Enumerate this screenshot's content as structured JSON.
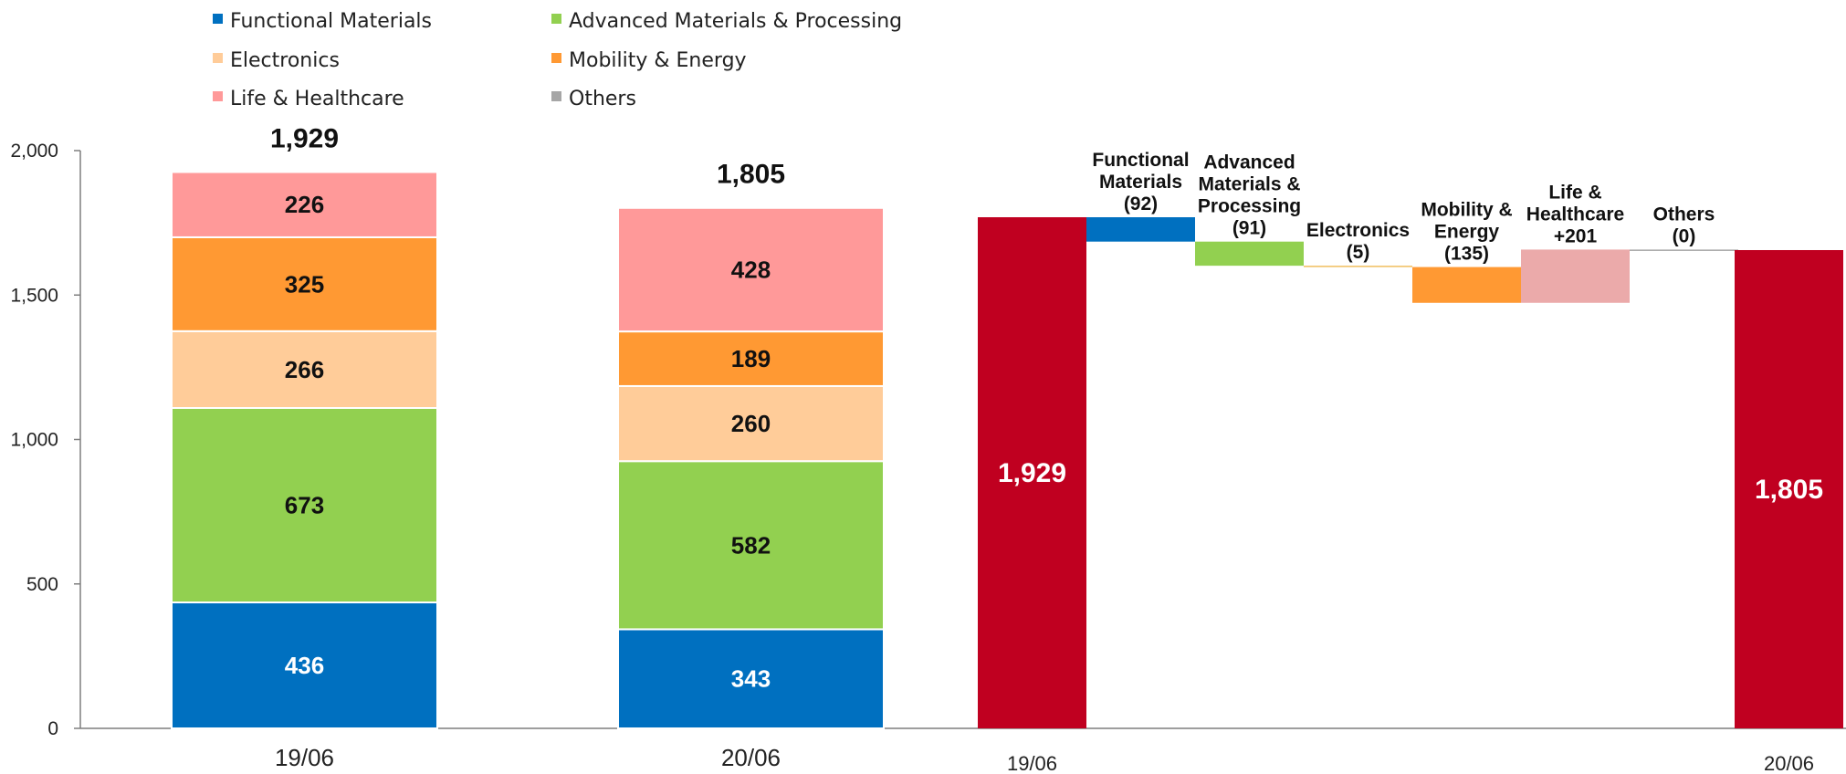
{
  "chart_data": [
    {
      "type": "bar",
      "stacked": true,
      "ylim": [
        0,
        2000
      ],
      "yticks": [
        "0",
        "500",
        "1,000",
        "1,500",
        "2,000"
      ],
      "ytick_values": [
        0,
        500,
        1000,
        1500,
        2000
      ],
      "categories": [
        "19/06",
        "20/06"
      ],
      "totals": [
        1929,
        1805
      ],
      "total_labels": [
        "1,929",
        "1,805"
      ],
      "grid": false,
      "legend_position": "top",
      "series": [
        {
          "name": "Functional Materials",
          "color": "#0070C0",
          "text_color": "#ffffff",
          "values": [
            436,
            343
          ]
        },
        {
          "name": "Advanced Materials & Processing",
          "color": "#92D050",
          "text_color": "#111111",
          "values": [
            673,
            582
          ]
        },
        {
          "name": "Electronics",
          "color": "#FFCC99",
          "text_color": "#111111",
          "values": [
            266,
            260
          ]
        },
        {
          "name": "Mobility & Energy",
          "color": "#FF9933",
          "text_color": "#111111",
          "values": [
            325,
            189
          ]
        },
        {
          "name": "Life & Healthcare",
          "color": "#FF9999",
          "text_color": "#111111",
          "values": [
            226,
            428
          ]
        },
        {
          "name": "Others",
          "color": "#A6A6A6",
          "text_color": "#111111",
          "values": [
            3,
            3
          ]
        }
      ],
      "legend_layout": [
        [
          "Functional Materials",
          "Advanced Materials & Processing"
        ],
        [
          "Electronics",
          "Mobility & Energy"
        ],
        [
          "Life & Healthcare",
          "Others"
        ]
      ]
    },
    {
      "type": "waterfall",
      "start": {
        "label": "19/06",
        "value": 1929,
        "value_label": "1,929",
        "color": "#C00020"
      },
      "end": {
        "label": "20/06",
        "value": 1805,
        "value_label": "1,805",
        "color": "#C00020"
      },
      "steps": [
        {
          "label_lines": [
            "Functional",
            "Materials",
            "(92)"
          ],
          "value": -92,
          "color": "#0070C0"
        },
        {
          "label_lines": [
            "Advanced",
            "Materials  &",
            "Processing",
            "(91)"
          ],
          "value": -91,
          "color": "#92D050"
        },
        {
          "label_lines": [
            "Electronics",
            "(5)"
          ],
          "value": -5,
          "color": "#F0BE5E"
        },
        {
          "label_lines": [
            "Mobility &",
            "Energy",
            "(135)"
          ],
          "value": -135,
          "color": "#FF9933"
        },
        {
          "label_lines": [
            "Life &",
            "Healthcare",
            "+201"
          ],
          "value": 201,
          "color": "#EBAAAA"
        },
        {
          "label_lines": [
            "Others",
            "(0)"
          ],
          "value": 0,
          "color": "#A6A6A6"
        }
      ]
    }
  ]
}
